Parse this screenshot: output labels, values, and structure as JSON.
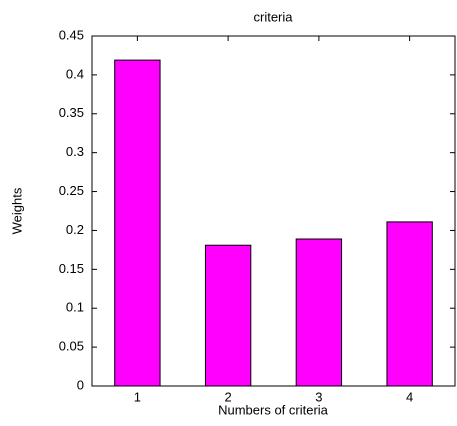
{
  "chart_data": {
    "type": "bar",
    "title": "criteria",
    "x_label": "Numbers of criteria",
    "y_label": "Weights",
    "categories": [
      "1",
      "2",
      "3",
      "4"
    ],
    "values": [
      0.419,
      0.181,
      0.189,
      0.211
    ],
    "color": "#ff00ff",
    "ylim": [
      0,
      0.45
    ],
    "yticks": [
      0,
      0.05,
      0.1,
      0.15,
      0.2,
      0.25,
      0.3,
      0.35,
      0.4,
      0.45
    ]
  }
}
